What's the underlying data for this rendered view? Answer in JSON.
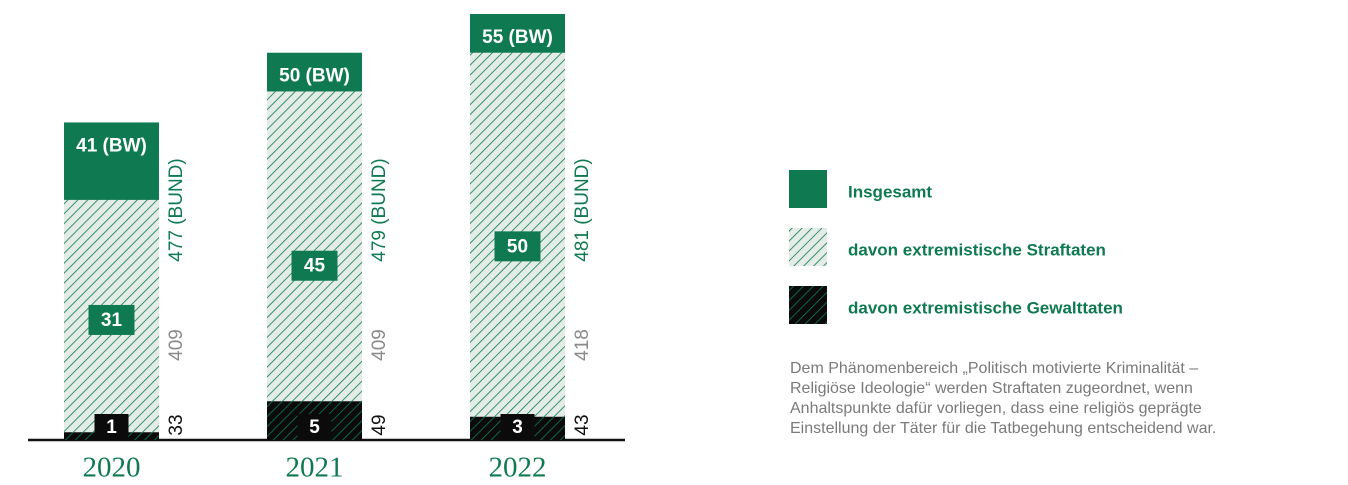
{
  "chart_data": {
    "type": "bar",
    "categories": [
      "2020",
      "2021",
      "2022"
    ],
    "ylim": [
      0,
      55
    ],
    "series": [
      {
        "name": "Insgesamt",
        "color": "#0f7a52",
        "values": [
          41,
          50,
          55
        ],
        "value_labels": [
          "41 (BW)",
          "50 (BW)",
          "55 (BW)"
        ],
        "bund_values": [
          477,
          479,
          481
        ],
        "bund_labels": [
          "477 (BUND)",
          "479 (BUND)",
          "481 (BUND)"
        ]
      },
      {
        "name": "davon extremistische Straftaten",
        "color": "#0f7a52",
        "values": [
          31,
          45,
          50
        ],
        "bund_values": [
          409,
          409,
          418
        ]
      },
      {
        "name": "davon extremistische Gewalttaten",
        "color": "#0b0b0b",
        "values": [
          1,
          5,
          3
        ],
        "bund_values": [
          33,
          49,
          43
        ]
      }
    ],
    "note": [
      "Dem Phänomenbereich „Politisch motivierte Kriminalität –",
      "Religiöse Ideologie“ werden Straftaten zugeordnet, wenn",
      "Anhaltspunkte dafür vorliegen, dass eine religiös geprägte",
      "Einstellung der Täter für die Tatbegehung entscheidend war."
    ]
  }
}
